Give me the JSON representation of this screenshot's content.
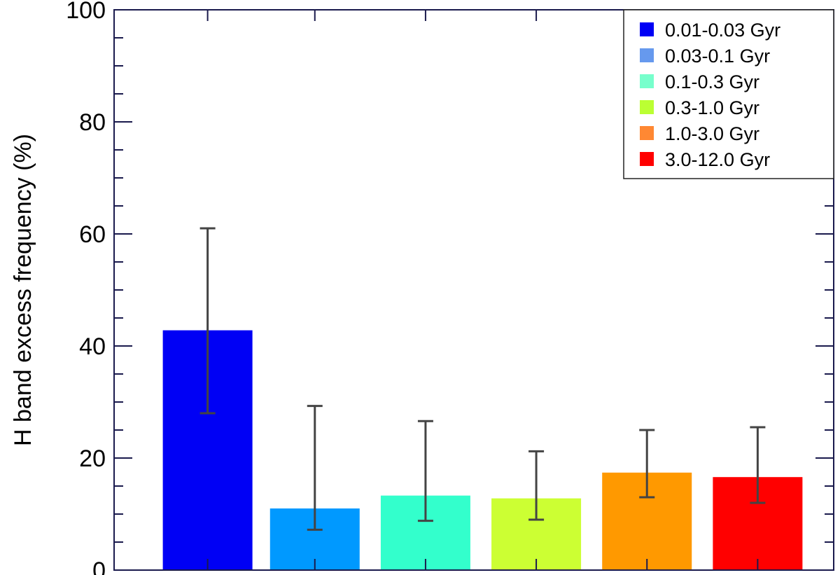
{
  "chart_data": {
    "type": "bar",
    "title": "",
    "xlabel": "",
    "ylabel": "H band excess frequency (%)",
    "ylim": [
      0,
      100
    ],
    "yticks": [
      0,
      20,
      40,
      60,
      80,
      100
    ],
    "categories": [
      "0.01-0.03 Gyr",
      "0.03-0.1 Gyr",
      "0.1-0.3 Gyr",
      "0.3-1.0 Gyr",
      "1.0-3.0 Gyr",
      "3.0-12.0 Gyr"
    ],
    "values": [
      42.8,
      11.0,
      13.3,
      12.8,
      17.4,
      16.6
    ],
    "error_low": [
      28.0,
      7.2,
      8.8,
      9.0,
      13.0,
      12.0
    ],
    "error_high": [
      61.0,
      29.3,
      26.6,
      21.2,
      25.0,
      25.5
    ],
    "bar_colors": [
      "#0000f5",
      "#0099ff",
      "#33ffcc",
      "#ccff33",
      "#ff9900",
      "#ff0000"
    ],
    "legend": {
      "placement": "top-right",
      "entries": [
        {
          "label": "0.01-0.03 Gyr",
          "color": "#0000f5"
        },
        {
          "label": "0.03-0.1 Gyr",
          "color": "#6699ee"
        },
        {
          "label": "0.1-0.3 Gyr",
          "color": "#77ffcc"
        },
        {
          "label": "0.3-1.0 Gyr",
          "color": "#bbff33"
        },
        {
          "label": "1.0-3.0 Gyr",
          "color": "#ff8833"
        },
        {
          "label": "3.0-12.0 Gyr",
          "color": "#ff0000"
        }
      ]
    },
    "grid": false,
    "axis_color": "#1a1a4d",
    "errorbar_color": "#444444"
  }
}
